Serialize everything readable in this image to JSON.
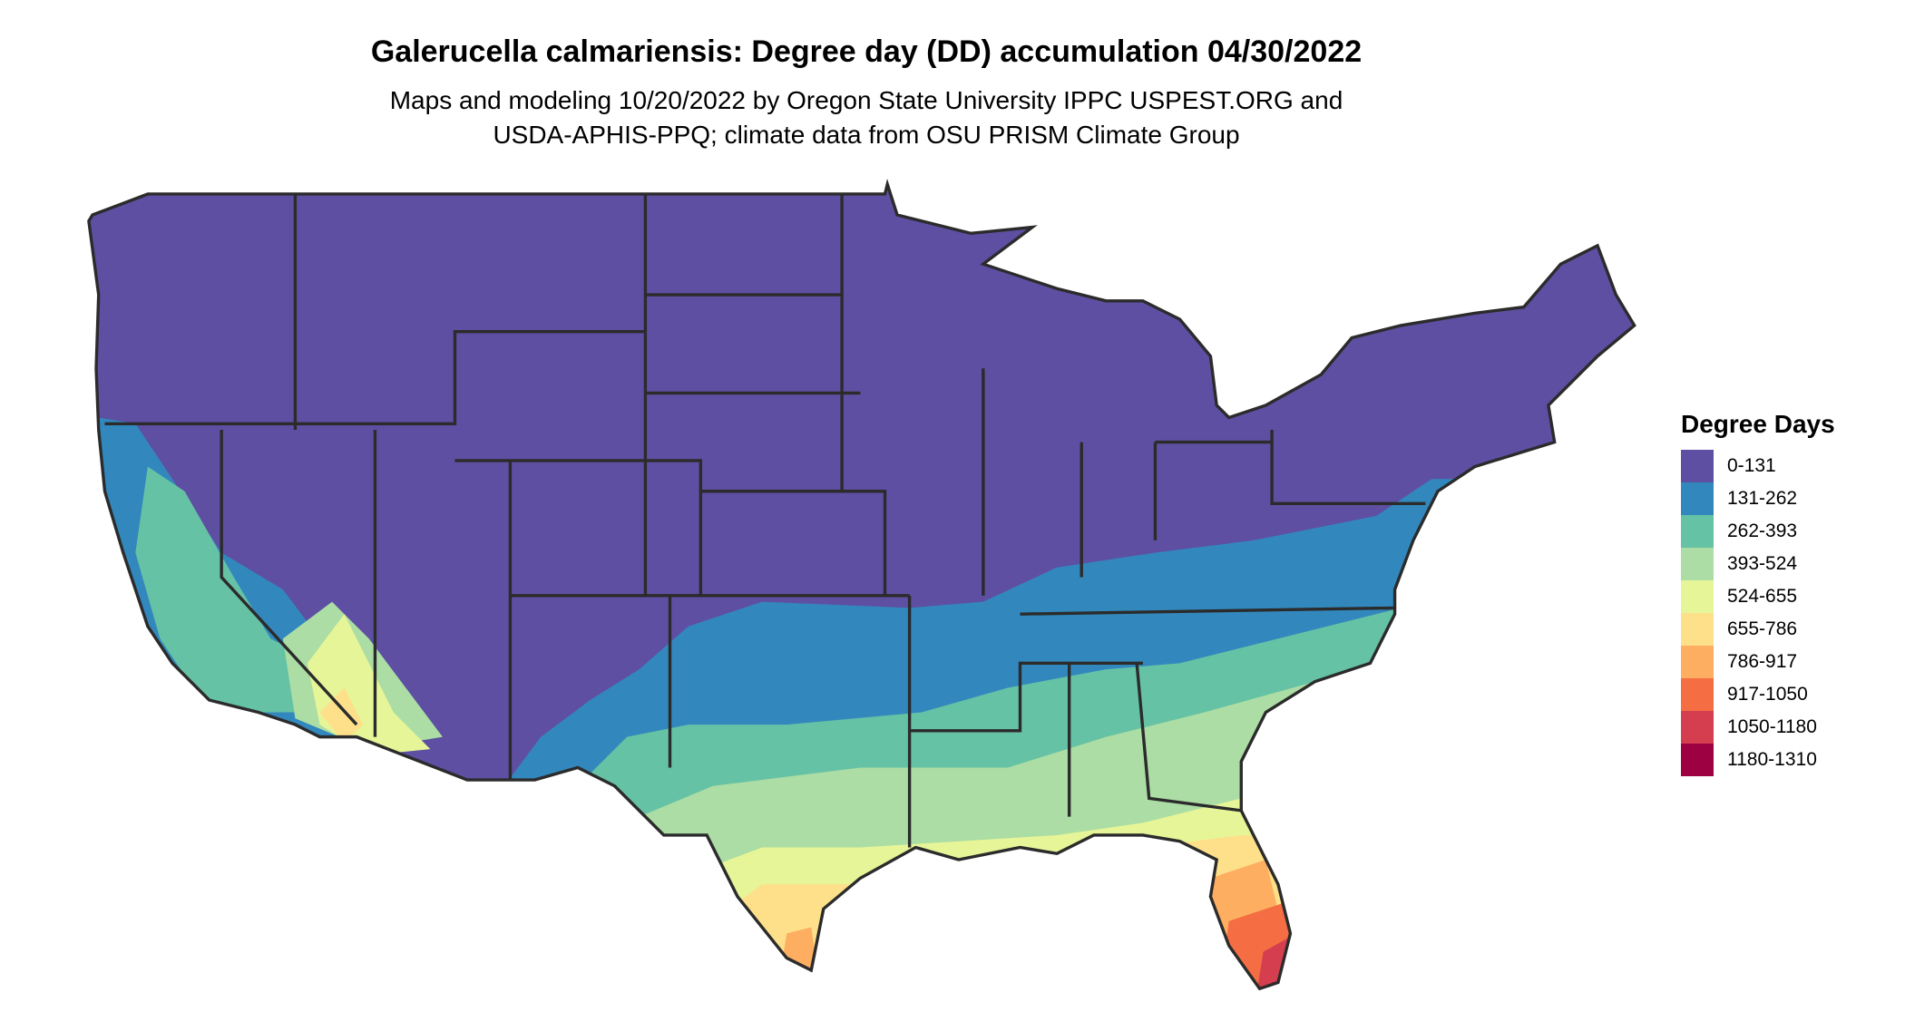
{
  "title": "Galerucella calmariensis: Degree day (DD) accumulation 04/30/2022",
  "subtitle_lines": [
    "Maps and modeling 10/20/2022 by Oregon State University IPPC USPEST.ORG and",
    "USDA-APHIS-PPQ; climate data from OSU PRISM Climate Group"
  ],
  "legend": {
    "title": "Degree Days",
    "items": [
      {
        "label": "0-131",
        "color": "#5E4FA2"
      },
      {
        "label": "131-262",
        "color": "#3288BD"
      },
      {
        "label": "262-393",
        "color": "#66C2A5"
      },
      {
        "label": "393-524",
        "color": "#ABDDA4"
      },
      {
        "label": "524-655",
        "color": "#E6F598"
      },
      {
        "label": "655-786",
        "color": "#FEE08B"
      },
      {
        "label": "786-917",
        "color": "#FDAE61"
      },
      {
        "label": "917-1050",
        "color": "#F46D43"
      },
      {
        "label": "1050-1180",
        "color": "#D53E4F"
      },
      {
        "label": "1180-1310",
        "color": "#9E0142"
      }
    ]
  },
  "border_color": "#2b2b2b"
}
